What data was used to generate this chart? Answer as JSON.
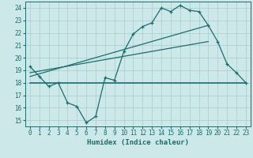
{
  "xlabel": "Humidex (Indice chaleur)",
  "bg_color": "#cce8e8",
  "grid_color": "#aacccc",
  "line_color": "#1a6e6e",
  "x_data": [
    0,
    1,
    2,
    3,
    4,
    5,
    6,
    7,
    8,
    9,
    10,
    11,
    12,
    13,
    14,
    15,
    16,
    17,
    18,
    19,
    20,
    21,
    22,
    23
  ],
  "y_main": [
    19.3,
    18.5,
    17.7,
    18.0,
    16.4,
    16.1,
    14.8,
    15.3,
    18.4,
    18.2,
    20.5,
    21.9,
    22.5,
    22.8,
    24.0,
    23.7,
    24.2,
    23.8,
    23.7,
    22.6,
    21.3,
    19.5,
    18.8,
    18.0
  ],
  "trend1_x": [
    0,
    19
  ],
  "trend1_y": [
    18.5,
    22.6
  ],
  "trend2_x": [
    0,
    19
  ],
  "trend2_y": [
    18.8,
    21.3
  ],
  "hline_y": 18.0,
  "hline_x": [
    0,
    23
  ],
  "ylim": [
    14.5,
    24.5
  ],
  "xlim": [
    -0.5,
    23.5
  ],
  "yticks": [
    15,
    16,
    17,
    18,
    19,
    20,
    21,
    22,
    23,
    24
  ],
  "xticks": [
    0,
    1,
    2,
    3,
    4,
    5,
    6,
    7,
    8,
    9,
    10,
    11,
    12,
    13,
    14,
    15,
    16,
    17,
    18,
    19,
    20,
    21,
    22,
    23
  ],
  "tick_fontsize": 5.5,
  "label_fontsize": 6.5
}
